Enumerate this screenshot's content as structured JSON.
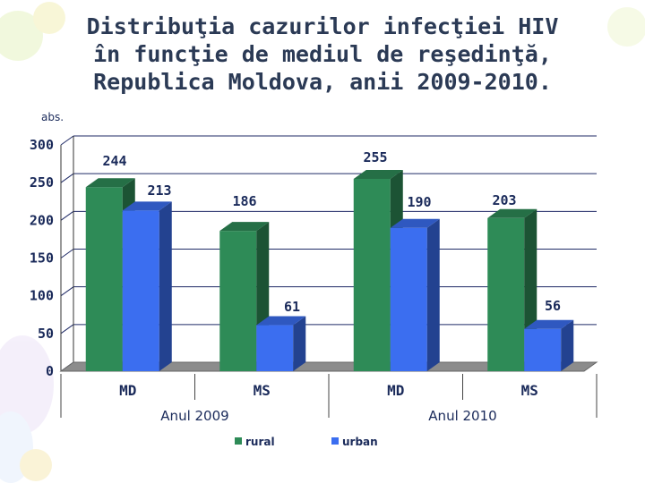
{
  "title_lines": [
    "Distribuţia cazurilor infecţiei HIV",
    "în funcţie de mediul de reşedinţă,",
    "Republica Moldova, anii 2009-2010."
  ],
  "colors": {
    "rural": "#2e8b57",
    "urban": "#3b6ef0"
  },
  "chart_data": {
    "type": "bar",
    "ylabel": "abs.",
    "ylim": [
      0,
      300
    ],
    "yticks": [
      0,
      50,
      100,
      150,
      200,
      250,
      300
    ],
    "grid": true,
    "legend": "bottom",
    "groups": [
      "Anul 2009",
      "Anul 2010"
    ],
    "categories": [
      "MD",
      "MS",
      "MD",
      "MS"
    ],
    "series": [
      {
        "name": "rural",
        "values": [
          244,
          186,
          255,
          203
        ]
      },
      {
        "name": "urban",
        "values": [
          213,
          61,
          190,
          56
        ]
      }
    ]
  }
}
